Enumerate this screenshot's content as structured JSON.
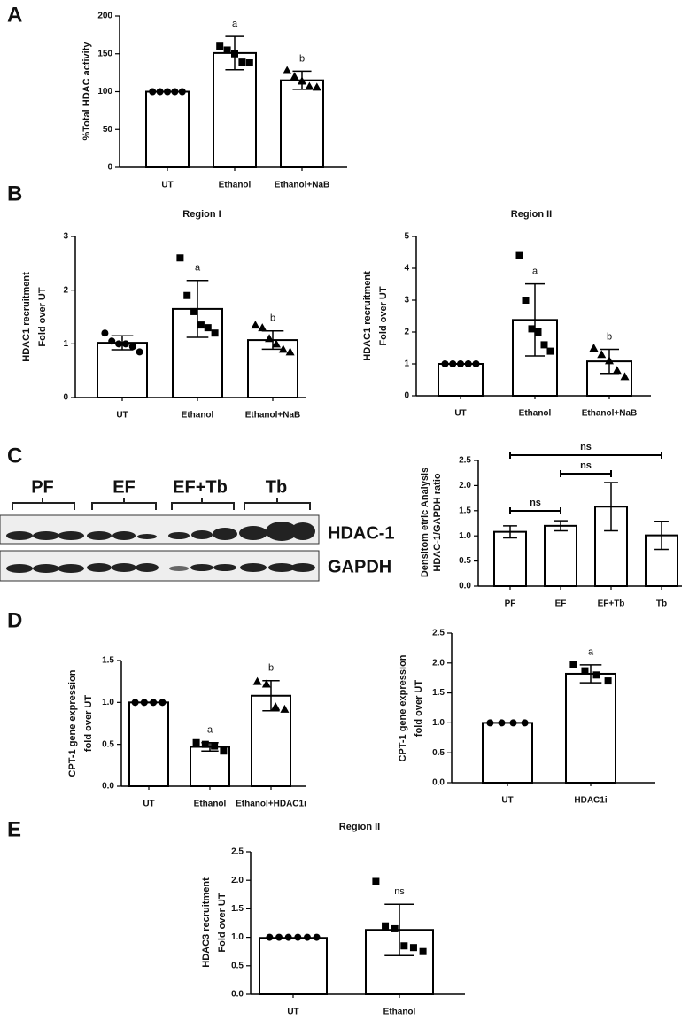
{
  "panels": [
    "A",
    "B",
    "C",
    "D",
    "E"
  ],
  "blot": {
    "lanes": [
      "PF",
      "EF",
      "EF+Tb",
      "Tb"
    ],
    "rows": [
      "HDAC-1",
      "GAPDH"
    ]
  },
  "chart_data": [
    {
      "type": "bar",
      "ylabel": [
        "%Total HDAC activity"
      ],
      "categories": [
        "UT",
        "Ethanol",
        "Ethanol+NaB"
      ],
      "values": [
        100,
        151,
        115
      ],
      "errors": [
        0,
        22,
        12
      ],
      "points": [
        [
          100,
          100,
          100,
          100,
          100
        ],
        [
          160,
          155,
          150,
          139,
          138
        ],
        [
          128,
          120,
          114,
          107,
          106
        ]
      ],
      "markers": [
        "circle",
        "square",
        "triangle"
      ],
      "annotations": [
        null,
        "a",
        "b"
      ],
      "ylim": [
        0,
        200
      ],
      "yticks": [
        0,
        50,
        100,
        150,
        200
      ],
      "color": "#000000"
    },
    {
      "type": "bar",
      "title": "Region I",
      "ylabel": [
        "HDAC1 recruitment",
        "Fold over UT"
      ],
      "categories": [
        "UT",
        "Ethanol",
        "Ethanol+NaB"
      ],
      "values": [
        1.02,
        1.65,
        1.07
      ],
      "errors": [
        0.13,
        0.53,
        0.17
      ],
      "points": [
        [
          1.2,
          1.05,
          1.0,
          1.0,
          0.95,
          0.85
        ],
        [
          2.6,
          1.9,
          1.6,
          1.35,
          1.3,
          1.2
        ],
        [
          1.35,
          1.3,
          1.1,
          1.0,
          0.9,
          0.85
        ]
      ],
      "markers": [
        "circle",
        "square",
        "triangle"
      ],
      "annotations": [
        null,
        "a",
        "b"
      ],
      "ylim": [
        0,
        3
      ],
      "yticks": [
        0,
        1,
        2,
        3
      ],
      "color": "#000000"
    },
    {
      "type": "bar",
      "title": "Region II",
      "ylabel": [
        "HDAC1 recruitment",
        "Fold over UT"
      ],
      "categories": [
        "UT",
        "Ethanol",
        "Ethanol+NaB"
      ],
      "values": [
        1.0,
        2.38,
        1.08
      ],
      "errors": [
        0,
        1.13,
        0.38
      ],
      "points": [
        [
          1,
          1,
          1,
          1,
          1
        ],
        [
          4.4,
          3.0,
          2.1,
          2.0,
          1.6,
          1.4
        ],
        [
          1.5,
          1.3,
          1.1,
          0.8,
          0.6
        ]
      ],
      "markers": [
        "circle",
        "square",
        "triangle"
      ],
      "annotations": [
        null,
        "a",
        "b"
      ],
      "ylim": [
        0,
        5
      ],
      "yticks": [
        0,
        1,
        2,
        3,
        4,
        5
      ],
      "color": "#000000"
    },
    {
      "type": "bar",
      "ylabel": [
        "Densitom etric Analysis",
        "HDAC-1/GAPDH ratio"
      ],
      "categories": [
        "PF",
        "EF",
        "EF+Tb",
        "Tb"
      ],
      "values": [
        1.08,
        1.2,
        1.58,
        1.01
      ],
      "errors": [
        0.12,
        0.1,
        0.48,
        0.28
      ],
      "brackets": [
        {
          "categories": [
            0,
            1
          ],
          "label": "ns"
        },
        {
          "categories": [
            1,
            2
          ],
          "label": "ns"
        },
        {
          "categories": [
            0,
            3
          ],
          "label": "ns"
        }
      ],
      "ylim": [
        0,
        2.5
      ],
      "yticks": [
        {
          "value": 0,
          "label": "0.0"
        },
        {
          "value": 0.5,
          "label": "0.5"
        },
        {
          "value": 1,
          "label": "1.0"
        },
        {
          "value": 1.5,
          "label": "1.5"
        },
        {
          "value": 2,
          "label": "2.0"
        },
        {
          "value": 2.5,
          "label": "2.5"
        }
      ],
      "color": "#000000"
    },
    {
      "type": "bar",
      "ylabel": [
        "CPT-1 gene expression",
        "fold over UT"
      ],
      "categories": [
        "UT",
        "Ethanol",
        "Ethanol+HDAC1i"
      ],
      "values": [
        1.0,
        0.47,
        1.08
      ],
      "errors": [
        0,
        0.05,
        0.18
      ],
      "points": [
        [
          1,
          1,
          1,
          1
        ],
        [
          0.52,
          0.5,
          0.48,
          0.42
        ],
        [
          1.25,
          1.22,
          0.95,
          0.92
        ]
      ],
      "markers": [
        "circle",
        "square",
        "triangle"
      ],
      "annotations": [
        null,
        "a",
        "b"
      ],
      "ylim": [
        0,
        1.5
      ],
      "yticks": [
        {
          "value": 0,
          "label": "0.0"
        },
        {
          "value": 0.5,
          "label": "0.5"
        },
        {
          "value": 1,
          "label": "1.0"
        },
        {
          "value": 1.5,
          "label": "1.5"
        }
      ],
      "color": "#000000"
    },
    {
      "type": "bar",
      "ylabel": [
        "CPT-1 gene expression",
        "fold over UT"
      ],
      "categories": [
        "UT",
        "HDAC1i"
      ],
      "values": [
        1.0,
        1.82
      ],
      "errors": [
        0,
        0.15
      ],
      "points": [
        [
          1,
          1,
          1,
          1
        ],
        [
          1.98,
          1.87,
          1.8,
          1.7
        ]
      ],
      "markers": [
        "circle",
        "square"
      ],
      "annotations": [
        null,
        "a"
      ],
      "ylim": [
        0,
        2.5
      ],
      "yticks": [
        {
          "value": 0,
          "label": "0.0"
        },
        {
          "value": 0.5,
          "label": "0.5"
        },
        {
          "value": 1,
          "label": "1.0"
        },
        {
          "value": 1.5,
          "label": "1.5"
        },
        {
          "value": 2,
          "label": "2.0"
        },
        {
          "value": 2.5,
          "label": "2.5"
        }
      ],
      "color": "#000000"
    },
    {
      "type": "bar",
      "title": "Region II",
      "ylabel": [
        "HDAC3 recruitment",
        "Fold over UT"
      ],
      "categories": [
        "UT",
        "Ethanol"
      ],
      "values": [
        0.99,
        1.13
      ],
      "errors": [
        0,
        0.45
      ],
      "points": [
        [
          1,
          1,
          1,
          1,
          1,
          1
        ],
        [
          1.98,
          1.2,
          1.15,
          0.85,
          0.82,
          0.75
        ]
      ],
      "markers": [
        "circle",
        "square"
      ],
      "annotations": [
        null,
        "ns"
      ],
      "ylim": [
        0,
        2.5
      ],
      "yticks": [
        {
          "value": 0,
          "label": "0.0"
        },
        {
          "value": 0.5,
          "label": "0.5"
        },
        {
          "value": 1,
          "label": "1.0"
        },
        {
          "value": 1.5,
          "label": "1.5"
        },
        {
          "value": 2,
          "label": "2.0"
        },
        {
          "value": 2.5,
          "label": "2.5"
        }
      ],
      "color": "#000000"
    }
  ]
}
